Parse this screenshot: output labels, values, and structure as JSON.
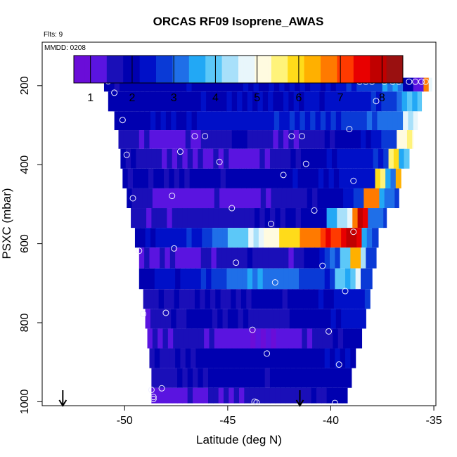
{
  "chart_data": {
    "type": "heatmap",
    "title": "ORCAS RF09 Isoprene_AWAS",
    "flights_label": "Flts: 9",
    "date_label": "MMDD: 0208",
    "xlabel": "Latitude (deg N)",
    "ylabel": "PSXC (mbar)",
    "xlim": [
      -54,
      -34.9
    ],
    "ylim": [
      1010,
      90
    ],
    "x_ticks": [
      -50,
      -45,
      -40,
      -35
    ],
    "x_tick_labels": [
      "-50",
      "-45",
      "-40",
      "-35"
    ],
    "y_ticks": [
      200,
      400,
      600,
      800,
      1000
    ],
    "y_tick_labels": [
      "200",
      "400",
      "600",
      "800",
      "1000"
    ],
    "colorbar": {
      "range": [
        0.6,
        8.5
      ],
      "ticks": [
        1,
        2,
        3,
        4,
        5,
        6,
        7,
        8
      ],
      "tick_labels": [
        "1",
        "2",
        "3",
        "4",
        "5",
        "6",
        "7",
        "8"
      ],
      "colors": [
        "#6a0dd8",
        "#5a14e0",
        "#1a0fb8",
        "#0000b0",
        "#0010c8",
        "#0a3ad6",
        "#1f6fe8",
        "#22a8f5",
        "#5cc8f8",
        "#a8e0fa",
        "#e8f6fb",
        "#fffbe0",
        "#fff37a",
        "#ffdb1a",
        "#ffb000",
        "#ff7a00",
        "#ff3a00",
        "#e80000",
        "#c00000",
        "#9a1010"
      ]
    },
    "layers": [
      {
        "p": 190,
        "west": -51.0,
        "east": -35.1,
        "left_value": 1.9,
        "segments": [
          [
            -39.5,
            2.2
          ],
          [
            -38.5,
            2.6
          ],
          [
            -37.5,
            2.9
          ],
          [
            -36.6,
            3.3
          ],
          [
            -36.0,
            2.0
          ],
          [
            -35.5,
            1.2
          ],
          [
            -35.35,
            6.8
          ],
          [
            -35.1,
            4.4
          ]
        ]
      },
      {
        "p": 240,
        "west": -50.8,
        "east": -35.6,
        "left_value": 2.0,
        "segments": [
          [
            -42.0,
            2.2
          ],
          [
            -38.0,
            2.5
          ],
          [
            -36.5,
            3.0
          ],
          [
            -35.6,
            3.8
          ]
        ]
      },
      {
        "p": 290,
        "west": -50.5,
        "east": -35.8,
        "left_value": 2.0,
        "segments": [
          [
            -46.5,
            2.2
          ],
          [
            -40.5,
            2.6
          ],
          [
            -37.5,
            2.9
          ],
          [
            -36.5,
            3.2
          ],
          [
            -35.8,
            4.6
          ]
        ]
      },
      {
        "p": 335,
        "west": -50.3,
        "east": -36.0,
        "left_value": 1.6,
        "segments": [
          [
            -48.0,
            1.1
          ],
          [
            -46.5,
            1.4
          ],
          [
            -44.5,
            1.9
          ],
          [
            -42.5,
            1.3
          ],
          [
            -40.5,
            1.6
          ],
          [
            -38.5,
            2.2
          ],
          [
            -36.8,
            2.9
          ],
          [
            -36.0,
            5.2
          ]
        ]
      },
      {
        "p": 385,
        "west": -50.2,
        "east": -36.2,
        "left_value": 1.8,
        "segments": [
          [
            -47.5,
            1.4
          ],
          [
            -44.0,
            1.2
          ],
          [
            -41.5,
            1.9
          ],
          [
            -39.2,
            2.3
          ],
          [
            -37.3,
            2.6
          ],
          [
            -36.6,
            5.8
          ],
          [
            -36.2,
            3.8
          ]
        ]
      },
      {
        "p": 435,
        "west": -50.1,
        "east": -36.6,
        "left_value": 1.8,
        "segments": [
          [
            -46.0,
            1.9
          ],
          [
            -42.5,
            2.0
          ],
          [
            -39.5,
            2.2
          ],
          [
            -37.8,
            2.5
          ],
          [
            -37.3,
            5.8
          ],
          [
            -36.9,
            3.3
          ],
          [
            -36.6,
            6.2
          ]
        ]
      },
      {
        "p": 485,
        "west": -49.9,
        "east": -36.7,
        "left_value": 1.9,
        "segments": [
          [
            -48.5,
            1.2
          ],
          [
            -44.0,
            1.3
          ],
          [
            -41.0,
            1.7
          ],
          [
            -39.5,
            2.2
          ],
          [
            -38.3,
            2.9
          ],
          [
            -37.7,
            6.6
          ],
          [
            -37.2,
            3.5
          ],
          [
            -36.7,
            2.9
          ]
        ]
      },
      {
        "p": 535,
        "west": -49.7,
        "east": -37.3,
        "left_value": 1.5,
        "segments": [
          [
            -45.5,
            1.6
          ],
          [
            -42.0,
            1.9
          ],
          [
            -40.3,
            2.0
          ],
          [
            -39.8,
            3.5
          ],
          [
            -39.0,
            4.5
          ],
          [
            -38.6,
            6.7
          ],
          [
            -38.2,
            7.7
          ],
          [
            -37.7,
            3.2
          ],
          [
            -37.3,
            2.9
          ]
        ]
      },
      {
        "p": 585,
        "west": -49.5,
        "east": -37.7,
        "left_value": 2.0,
        "segments": [
          [
            -46.5,
            2.6
          ],
          [
            -45.0,
            3.3
          ],
          [
            -44.0,
            3.9
          ],
          [
            -43.2,
            4.6
          ],
          [
            -42.4,
            5.3
          ],
          [
            -41.5,
            6.0
          ],
          [
            -40.5,
            6.7
          ],
          [
            -39.5,
            7.3
          ],
          [
            -38.6,
            7.7
          ],
          [
            -38.0,
            3.4
          ],
          [
            -37.7,
            2.8
          ]
        ]
      },
      {
        "p": 635,
        "west": -49.3,
        "east": -37.8,
        "left_value": 1.4,
        "segments": [
          [
            -46.5,
            1.3
          ],
          [
            -44.0,
            1.8
          ],
          [
            -42.0,
            1.4
          ],
          [
            -40.3,
            2.2
          ],
          [
            -39.6,
            3.0
          ],
          [
            -39.1,
            4.1
          ],
          [
            -38.6,
            6.2
          ],
          [
            -38.2,
            4.3
          ],
          [
            -37.8,
            2.9
          ]
        ]
      },
      {
        "p": 690,
        "west": -49.3,
        "east": -38.0,
        "left_value": 2.1,
        "segments": [
          [
            -47.5,
            2.3
          ],
          [
            -45.5,
            2.8
          ],
          [
            -43.5,
            3.5
          ],
          [
            -41.5,
            2.9
          ],
          [
            -39.8,
            2.4
          ],
          [
            -38.9,
            3.9
          ],
          [
            -38.5,
            4.9
          ],
          [
            -38.0,
            2.9
          ]
        ]
      },
      {
        "p": 740,
        "west": -49.1,
        "east": -38.1,
        "left_value": 1.6,
        "segments": [
          [
            -46.0,
            1.8
          ],
          [
            -42.5,
            1.9
          ],
          [
            -40.0,
            2.2
          ],
          [
            -38.1,
            2.6
          ]
        ]
      },
      {
        "p": 790,
        "west": -49.0,
        "east": -38.3,
        "left_value": 1.5,
        "segments": [
          [
            -46.5,
            1.9
          ],
          [
            -43.0,
            1.6
          ],
          [
            -40.5,
            2.1
          ],
          [
            -38.3,
            2.4
          ]
        ]
      },
      {
        "p": 840,
        "west": -48.9,
        "east": -38.5,
        "left_value": 1.3,
        "segments": [
          [
            -47.0,
            1.5
          ],
          [
            -45.0,
            1.2
          ],
          [
            -43.0,
            1.0
          ],
          [
            -41.0,
            1.4
          ],
          [
            -38.5,
            2.0
          ]
        ]
      },
      {
        "p": 890,
        "west": -48.8,
        "east": -38.8,
        "left_value": 1.7,
        "segments": [
          [
            -46.0,
            1.9
          ],
          [
            -42.5,
            2.0
          ],
          [
            -38.8,
            2.2
          ]
        ]
      },
      {
        "p": 940,
        "west": -48.7,
        "east": -39.0,
        "left_value": 1.5,
        "segments": [
          [
            -46.5,
            1.8
          ],
          [
            -43.0,
            1.9
          ],
          [
            -39.0,
            2.0
          ]
        ]
      },
      {
        "p": 990,
        "west": -48.7,
        "east": -39.2,
        "left_value": 1.2,
        "segments": [
          [
            -45.0,
            1.4
          ],
          [
            -41.5,
            1.7
          ],
          [
            -40.0,
            1.9
          ],
          [
            -39.2,
            2.0
          ]
        ]
      }
    ],
    "sample_points": [
      [
        -50.8,
        189
      ],
      [
        -50.5,
        218
      ],
      [
        -50.1,
        287
      ],
      [
        -49.9,
        375
      ],
      [
        -49.6,
        485
      ],
      [
        -49.3,
        618
      ],
      [
        -49.1,
        778
      ],
      [
        -48.7,
        970
      ],
      [
        -48.6,
        988
      ],
      [
        -48.6,
        993
      ],
      [
        -48.2,
        966
      ],
      [
        -48.0,
        775
      ],
      [
        -47.6,
        612
      ],
      [
        -47.3,
        367
      ],
      [
        -47.7,
        479
      ],
      [
        -46.6,
        328
      ],
      [
        -46.1,
        328
      ],
      [
        -45.4,
        393
      ],
      [
        -44.8,
        510
      ],
      [
        -44.6,
        648
      ],
      [
        -43.8,
        818
      ],
      [
        -43.7,
        1000
      ],
      [
        -43.6,
        1002
      ],
      [
        -42.9,
        550
      ],
      [
        -43.1,
        878
      ],
      [
        -42.7,
        698
      ],
      [
        -42.3,
        426
      ],
      [
        -41.9,
        328
      ],
      [
        -41.4,
        328
      ],
      [
        -41.2,
        398
      ],
      [
        -40.8,
        516
      ],
      [
        -40.4,
        656
      ],
      [
        -40.1,
        822
      ],
      [
        -39.8,
        1003
      ],
      [
        -39.6,
        906
      ],
      [
        -39.3,
        720
      ],
      [
        -39.1,
        310
      ],
      [
        -38.6,
        190
      ],
      [
        -38.3,
        190
      ],
      [
        -38.9,
        570
      ],
      [
        -38.9,
        441
      ],
      [
        -38.0,
        190
      ],
      [
        -37.8,
        239
      ],
      [
        -37.4,
        190
      ],
      [
        -37.0,
        190
      ],
      [
        -36.7,
        190
      ],
      [
        -36.2,
        190
      ],
      [
        -35.9,
        190
      ],
      [
        -35.6,
        190
      ],
      [
        -35.4,
        190
      ]
    ],
    "arrows_at_latitude": [
      -53.0,
      -41.5
    ]
  }
}
